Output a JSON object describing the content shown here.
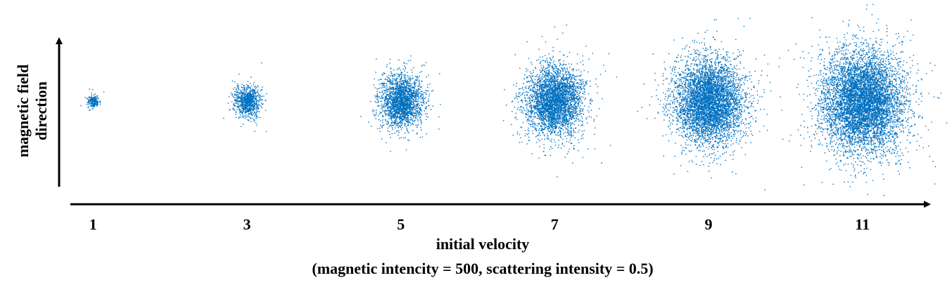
{
  "chart_data": {
    "type": "scatter",
    "title": "",
    "xlabel": "initial velocity",
    "ylabel_lines": [
      "magnetic field",
      "direction"
    ],
    "caption": "(magnetic intencity = 500, scattering intensity = 0.5)",
    "categories": [
      "1",
      "3",
      "5",
      "7",
      "9",
      "11"
    ],
    "clusters": [
      {
        "velocity": 1,
        "spread_x": 0.07,
        "spread_y": 0.07,
        "points": 220
      },
      {
        "velocity": 3,
        "spread_x": 0.16,
        "spread_y": 0.18,
        "points": 900
      },
      {
        "velocity": 5,
        "spread_x": 0.27,
        "spread_y": 0.3,
        "points": 2200
      },
      {
        "velocity": 7,
        "spread_x": 0.36,
        "spread_y": 0.4,
        "points": 3500
      },
      {
        "velocity": 9,
        "spread_x": 0.44,
        "spread_y": 0.49,
        "points": 5000
      },
      {
        "velocity": 11,
        "spread_x": 0.52,
        "spread_y": 0.58,
        "points": 6500
      }
    ],
    "center_y": 0,
    "point_color": "#0070C0",
    "grid": false,
    "legend": "none"
  }
}
